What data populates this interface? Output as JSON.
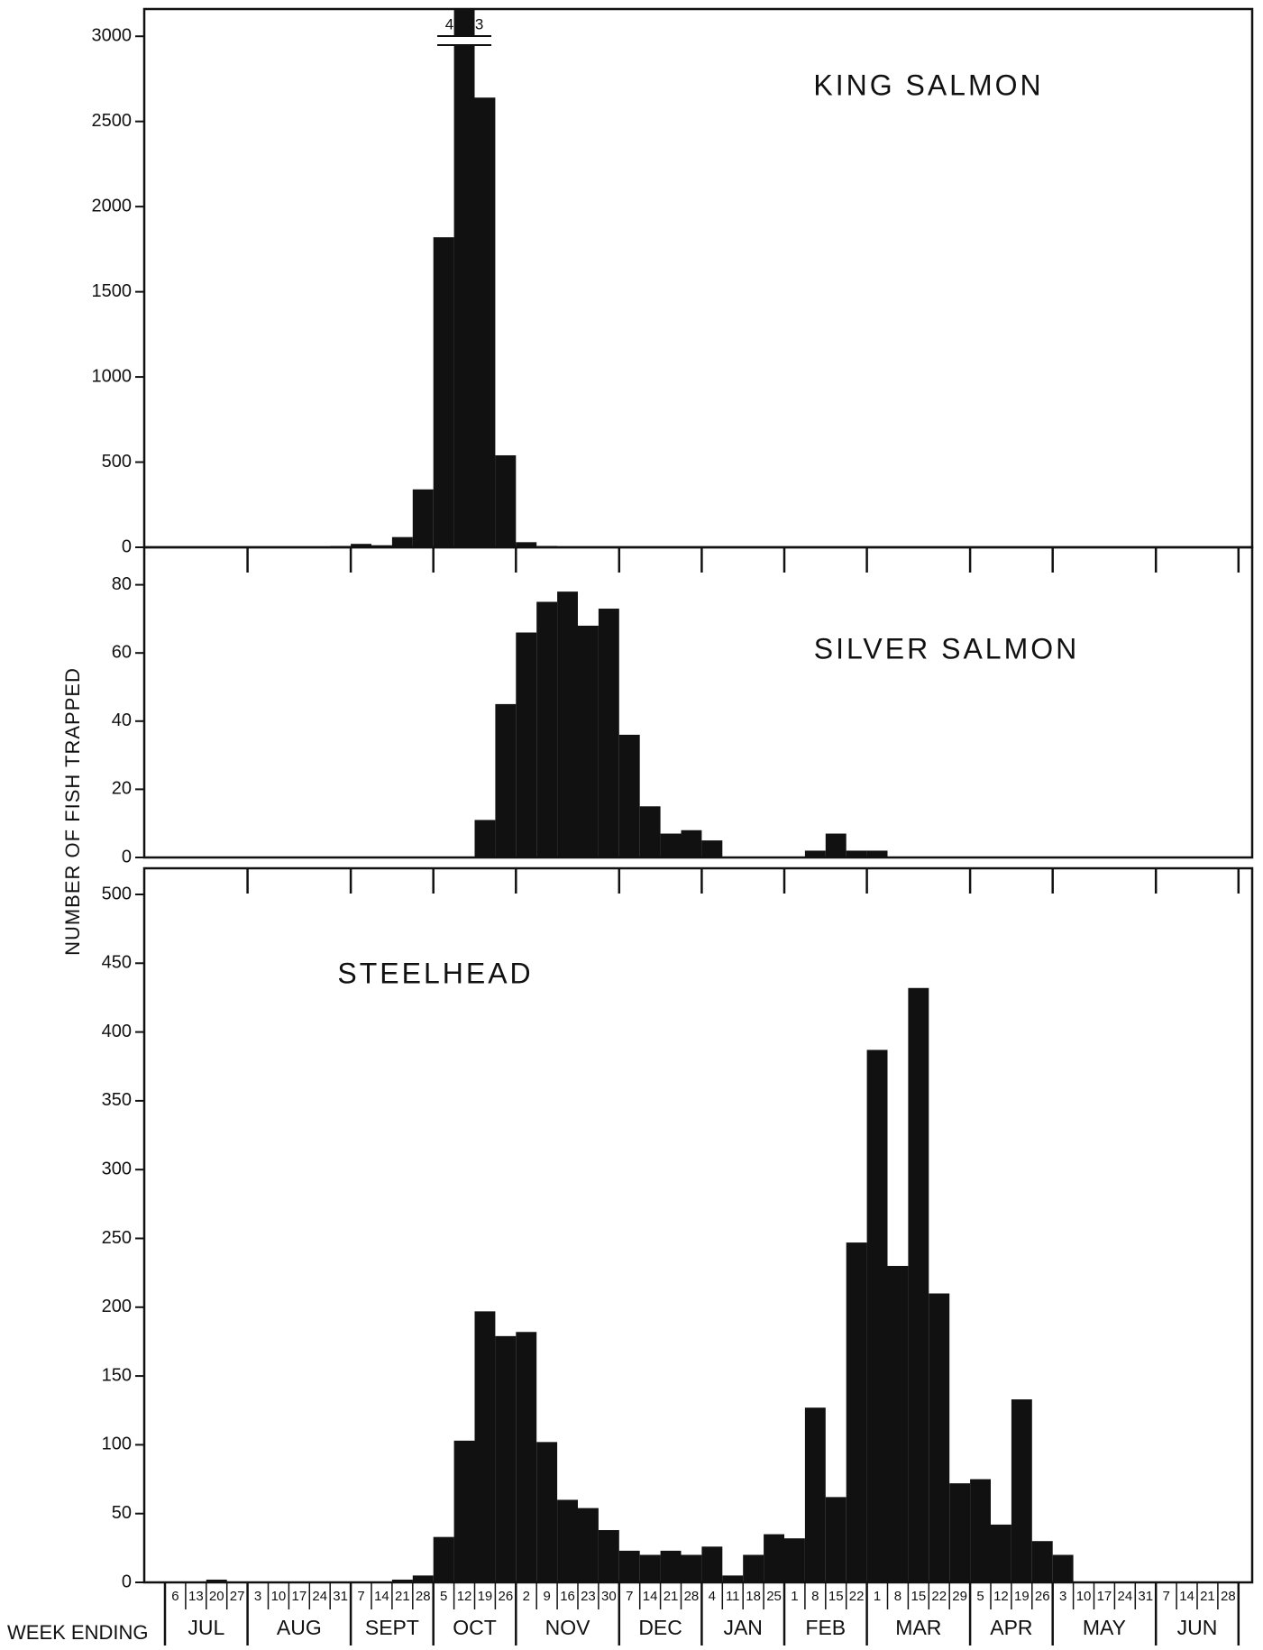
{
  "y_label": "NUMBER OF FISH TRAPPED",
  "chart_data": {
    "type": "bar",
    "x_label": "WEEK ENDING",
    "categories": [
      "6",
      "13",
      "20",
      "27",
      "3",
      "10",
      "17",
      "24",
      "31",
      "7",
      "14",
      "21",
      "28",
      "5",
      "12",
      "19",
      "26",
      "2",
      "9",
      "16",
      "23",
      "30",
      "7",
      "14",
      "21",
      "28",
      "4",
      "11",
      "18",
      "25",
      "1",
      "8",
      "15",
      "22",
      "1",
      "8",
      "15",
      "22",
      "29",
      "5",
      "12",
      "19",
      "26",
      "3",
      "10",
      "17",
      "24",
      "31",
      "7",
      "14",
      "21",
      "28"
    ],
    "months": [
      "JUL",
      "AUG",
      "SEPT",
      "OCT",
      "NOV",
      "DEC",
      "JAN",
      "FEB",
      "MAR",
      "APR",
      "MAY",
      "JUN"
    ],
    "panels": [
      {
        "title": "KING SALMON",
        "color": "#111111",
        "ylim": [
          0,
          3160
        ],
        "yticks": [
          0,
          500,
          1000,
          1500,
          2000,
          2500,
          3000
        ],
        "values": [
          5,
          5,
          5,
          5,
          3,
          3,
          3,
          3,
          8,
          20,
          12,
          60,
          340,
          1820,
          4323,
          2640,
          540,
          30,
          8,
          2,
          0,
          0,
          0,
          0,
          0,
          0,
          0,
          0,
          0,
          0,
          0,
          0,
          0,
          0,
          0,
          0,
          0,
          0,
          0,
          0,
          0,
          0,
          0,
          0,
          0,
          0,
          0,
          0,
          0,
          0,
          0,
          0
        ],
        "value_labels": [
          null,
          null,
          null,
          null,
          null,
          null,
          null,
          null,
          null,
          null,
          null,
          null,
          null,
          null,
          "4,323",
          null,
          null,
          null,
          null,
          null,
          null,
          null,
          null,
          null,
          null,
          null,
          null,
          null,
          null,
          null,
          null,
          null,
          null,
          null,
          null,
          null,
          null,
          null,
          null,
          null,
          null,
          null,
          null,
          null,
          null,
          null,
          null,
          null,
          null,
          null,
          null,
          null
        ]
      },
      {
        "title": "SILVER SALMON",
        "color": "#111111",
        "ylim": [
          0,
          91
        ],
        "yticks": [
          0,
          20,
          40,
          60,
          80
        ],
        "values": [
          0,
          0,
          0,
          0,
          0,
          0,
          0,
          0,
          0,
          0,
          0,
          0,
          0,
          0,
          0,
          11,
          45,
          66,
          75,
          78,
          68,
          73,
          36,
          15,
          7,
          8,
          5,
          0,
          0,
          0,
          0,
          2,
          7,
          2,
          2,
          0,
          0,
          0,
          0,
          0,
          0,
          0,
          0,
          0,
          0,
          0,
          0,
          0,
          0,
          0,
          0,
          0
        ]
      },
      {
        "title": "STEELHEAD",
        "color": "#111111",
        "ylim": [
          0,
          519
        ],
        "yticks": [
          0,
          50,
          100,
          150,
          200,
          250,
          300,
          350,
          400,
          450,
          500
        ],
        "values": [
          0,
          0,
          2,
          0,
          0,
          0,
          0,
          0,
          0,
          0,
          0,
          2,
          5,
          33,
          103,
          197,
          179,
          182,
          102,
          60,
          54,
          38,
          23,
          20,
          23,
          20,
          26,
          5,
          20,
          35,
          32,
          127,
          62,
          247,
          387,
          230,
          432,
          210,
          72,
          75,
          42,
          133,
          30,
          20,
          0,
          0,
          0,
          0,
          0,
          0,
          0,
          0
        ]
      }
    ]
  }
}
